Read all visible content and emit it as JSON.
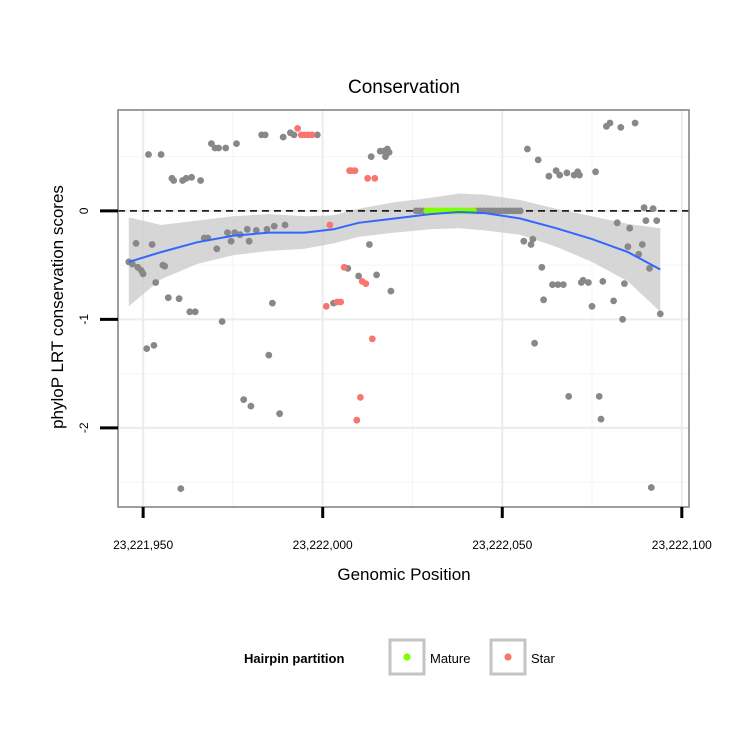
{
  "chart_data": {
    "type": "scatter",
    "title": "Conservation",
    "xlabel": "Genomic Position",
    "ylabel": "phyloP LRT conservation scores",
    "xlim": [
      23221943,
      23222102
    ],
    "ylim": [
      -2.73,
      0.93
    ],
    "x_ticks": [
      23221950,
      23222000,
      23222050,
      23222100
    ],
    "x_tick_labels": [
      "23,221,950",
      "23,222,000",
      "23,222,050",
      "23,222,100"
    ],
    "y_ticks": [
      0,
      -1,
      -2
    ],
    "y_tick_labels": [
      "0",
      "-1",
      "-2"
    ],
    "reference_line": {
      "y": 0,
      "style": "dashed"
    },
    "grid": true,
    "legend": {
      "title": "Hairpin partition",
      "position": "bottom",
      "entries": [
        {
          "label": "Mature",
          "color": "#7fff00"
        },
        {
          "label": "Star",
          "color": "#f8766d"
        }
      ]
    },
    "colors": {
      "other": "#888888",
      "mature": "#7fff00",
      "star": "#f8766d",
      "smooth": "#3366ff",
      "ribbon": "#c8c8c8"
    },
    "series": [
      {
        "name": "Other",
        "points": [
          [
            23221946,
            -0.47
          ],
          [
            23221947,
            -0.49
          ],
          [
            23221948,
            -0.3
          ],
          [
            23221948.5,
            -0.52
          ],
          [
            23221949.5,
            -0.55
          ],
          [
            23221950,
            -0.58
          ],
          [
            23221951,
            -1.27
          ],
          [
            23221951.5,
            0.52
          ],
          [
            23221952.5,
            -0.31
          ],
          [
            23221953,
            -1.24
          ],
          [
            23221953.5,
            -0.66
          ],
          [
            23221955,
            0.52
          ],
          [
            23221955.5,
            -0.5
          ],
          [
            23221956,
            -0.51
          ],
          [
            23221957,
            -0.8
          ],
          [
            23221958,
            0.3
          ],
          [
            23221958.5,
            0.28
          ],
          [
            23221960,
            -0.81
          ],
          [
            23221960.5,
            -2.56
          ],
          [
            23221961,
            0.28
          ],
          [
            23221962,
            0.3
          ],
          [
            23221963,
            -0.93
          ],
          [
            23221963.5,
            0.31
          ],
          [
            23221964.5,
            -0.93
          ],
          [
            23221966,
            0.28
          ],
          [
            23221967,
            -0.25
          ],
          [
            23221968,
            -0.25
          ],
          [
            23221969,
            0.62
          ],
          [
            23221970,
            0.58
          ],
          [
            23221970.5,
            -0.35
          ],
          [
            23221971,
            0.58
          ],
          [
            23221972,
            -1.02
          ],
          [
            23221973,
            0.58
          ],
          [
            23221973.5,
            -0.2
          ],
          [
            23221974.5,
            -0.28
          ],
          [
            23221975.5,
            -0.2
          ],
          [
            23221976,
            0.62
          ],
          [
            23221977,
            -0.22
          ],
          [
            23221978,
            -1.74
          ],
          [
            23221979,
            -0.17
          ],
          [
            23221979.5,
            -0.28
          ],
          [
            23221980,
            -1.8
          ],
          [
            23221981.5,
            -0.18
          ],
          [
            23221983,
            0.7
          ],
          [
            23221984,
            0.7
          ],
          [
            23221984.5,
            -0.17
          ],
          [
            23221985,
            -1.33
          ],
          [
            23221986,
            -0.85
          ],
          [
            23221986.5,
            -0.14
          ],
          [
            23221988,
            -1.87
          ],
          [
            23221989,
            0.68
          ],
          [
            23221989.5,
            -0.13
          ],
          [
            23221991,
            0.72
          ],
          [
            23221992,
            0.7
          ],
          [
            23221998.5,
            0.7
          ],
          [
            23222003,
            -0.85
          ],
          [
            23222007,
            -0.53
          ],
          [
            23222010,
            -0.6
          ],
          [
            23222013,
            -0.31
          ],
          [
            23222013.5,
            0.5
          ],
          [
            23222015,
            -0.59
          ],
          [
            23222016,
            0.55
          ],
          [
            23222017,
            0.55
          ],
          [
            23222017.5,
            0.5
          ],
          [
            23222018,
            0.57
          ],
          [
            23222018.5,
            0.54
          ],
          [
            23222019,
            -0.74
          ],
          [
            23222026,
            0.0
          ],
          [
            23222027,
            0.0
          ],
          [
            23222028,
            0.0
          ],
          [
            23222043,
            0.0
          ],
          [
            23222044,
            0.0
          ],
          [
            23222045,
            0.0
          ],
          [
            23222046,
            0.0
          ],
          [
            23222047,
            0.0
          ],
          [
            23222048,
            0.0
          ],
          [
            23222049,
            0.0
          ],
          [
            23222050,
            0.0
          ],
          [
            23222051,
            0.0
          ],
          [
            23222052,
            0.0
          ],
          [
            23222053,
            0.0
          ],
          [
            23222054,
            0.0
          ],
          [
            23222055,
            0.0
          ],
          [
            23222056,
            -0.28
          ],
          [
            23222057,
            0.57
          ],
          [
            23222058,
            -0.31
          ],
          [
            23222058.5,
            -0.26
          ],
          [
            23222059,
            -1.22
          ],
          [
            23222060,
            0.47
          ],
          [
            23222061,
            -0.52
          ],
          [
            23222061.5,
            -0.82
          ],
          [
            23222063,
            0.32
          ],
          [
            23222064,
            -0.68
          ],
          [
            23222065,
            0.37
          ],
          [
            23222065.5,
            -0.68
          ],
          [
            23222066,
            0.33
          ],
          [
            23222067,
            -0.68
          ],
          [
            23222068,
            0.35
          ],
          [
            23222068.5,
            -1.71
          ],
          [
            23222070,
            0.33
          ],
          [
            23222071,
            0.36
          ],
          [
            23222071.5,
            0.33
          ],
          [
            23222072,
            -0.66
          ],
          [
            23222072.5,
            -0.64
          ],
          [
            23222074,
            -0.66
          ],
          [
            23222075,
            -0.88
          ],
          [
            23222076,
            0.36
          ],
          [
            23222077,
            -1.71
          ],
          [
            23222077.5,
            -1.92
          ],
          [
            23222078,
            -0.65
          ],
          [
            23222079,
            0.78
          ],
          [
            23222080,
            0.81
          ],
          [
            23222081,
            -0.83
          ],
          [
            23222082,
            -0.11
          ],
          [
            23222083,
            0.77
          ],
          [
            23222083.5,
            -1.0
          ],
          [
            23222084,
            -0.67
          ],
          [
            23222085,
            -0.33
          ],
          [
            23222085.5,
            -0.16
          ],
          [
            23222087,
            0.81
          ],
          [
            23222088,
            -0.4
          ],
          [
            23222089,
            -0.31
          ],
          [
            23222089.5,
            0.03
          ],
          [
            23222090,
            -0.09
          ],
          [
            23222091,
            -0.53
          ],
          [
            23222091.5,
            -2.55
          ],
          [
            23222092,
            0.02
          ],
          [
            23222093,
            -0.09
          ],
          [
            23222094,
            -0.95
          ]
        ]
      },
      {
        "name": "Mature",
        "points": [
          [
            23222029,
            0.0
          ],
          [
            23222030,
            0.0
          ],
          [
            23222031,
            0.0
          ],
          [
            23222032,
            0.0
          ],
          [
            23222033,
            0.0
          ],
          [
            23222034,
            0.0
          ],
          [
            23222035,
            0.0
          ],
          [
            23222036,
            0.0
          ],
          [
            23222037,
            0.0
          ],
          [
            23222038,
            0.0
          ],
          [
            23222039,
            0.0
          ],
          [
            23222040,
            0.0
          ],
          [
            23222041,
            0.0
          ],
          [
            23222042,
            0.0
          ]
        ]
      },
      {
        "name": "Star",
        "points": [
          [
            23221993,
            0.76
          ],
          [
            23221994,
            0.7
          ],
          [
            23221995,
            0.7
          ],
          [
            23221996,
            0.7
          ],
          [
            23221997,
            0.7
          ],
          [
            23222001,
            -0.88
          ],
          [
            23222002,
            -0.13
          ],
          [
            23222004,
            -0.84
          ],
          [
            23222005,
            -0.84
          ],
          [
            23222006,
            -0.52
          ],
          [
            23222007.5,
            0.37
          ],
          [
            23222008,
            0.37
          ],
          [
            23222009,
            0.37
          ],
          [
            23222010.5,
            -1.72
          ],
          [
            23222011,
            -0.65
          ],
          [
            23222012,
            -0.67
          ],
          [
            23222012.5,
            0.3
          ],
          [
            23222013.8,
            -1.18
          ],
          [
            23222014.5,
            0.3
          ],
          [
            23222009.5,
            -1.93
          ]
        ]
      }
    ],
    "smooth_line": {
      "x": [
        23221946,
        23221955,
        23221965,
        23221975,
        23221985,
        23221995,
        23222003,
        23222010,
        23222020,
        23222030,
        23222038,
        23222045,
        23222055,
        23222065,
        23222075,
        23222085,
        23222094
      ],
      "y": [
        -0.47,
        -0.38,
        -0.29,
        -0.23,
        -0.2,
        -0.2,
        -0.17,
        -0.11,
        -0.07,
        -0.03,
        -0.01,
        -0.02,
        -0.07,
        -0.16,
        -0.26,
        -0.38,
        -0.54
      ]
    },
    "confidence_band": {
      "lower": [
        -0.88,
        -0.63,
        -0.49,
        -0.41,
        -0.37,
        -0.35,
        -0.3,
        -0.24,
        -0.2,
        -0.17,
        -0.16,
        -0.18,
        -0.22,
        -0.33,
        -0.47,
        -0.65,
        -0.93
      ],
      "upper": [
        -0.06,
        -0.13,
        -0.09,
        -0.05,
        -0.03,
        -0.05,
        -0.04,
        0.02,
        0.08,
        0.12,
        0.16,
        0.15,
        0.1,
        0.02,
        -0.05,
        -0.12,
        -0.16
      ]
    }
  }
}
